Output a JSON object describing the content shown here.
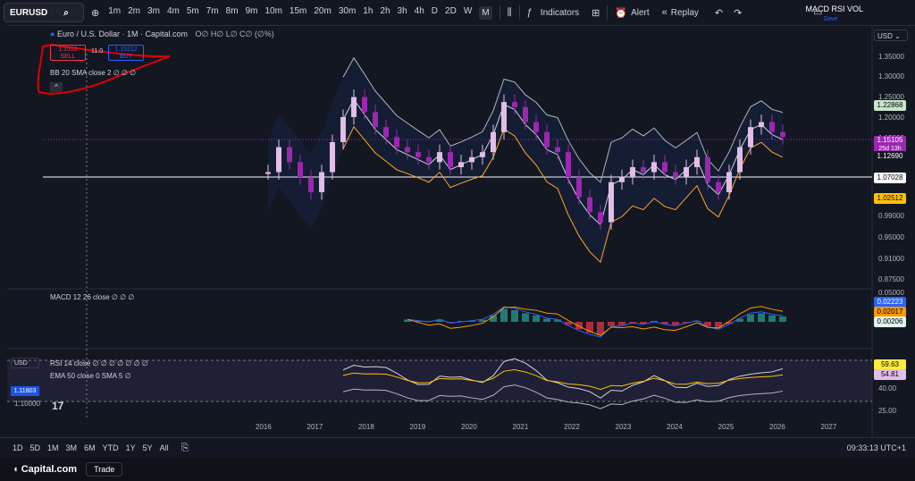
{
  "toolbar": {
    "symbol": "EURUSD",
    "intervals": [
      "1m",
      "2m",
      "3m",
      "4m",
      "5m",
      "7m",
      "8m",
      "9m",
      "10m",
      "15m",
      "20m",
      "30m",
      "1h",
      "2h",
      "3h",
      "4h",
      "D",
      "2D",
      "W",
      "M"
    ],
    "active_interval": "M",
    "indicators_label": "Indicators",
    "alert_label": "Alert",
    "replay_label": "Replay",
    "layout_name": "MACD RSI VOL",
    "save_label": "Save"
  },
  "legend": {
    "title": "Euro / U.S. Dollar · 1M · Capital.com",
    "ohlc": "O∅ H∅ L∅ C∅ (∅%)",
    "sell_price": "1.1510",
    "sell_label": "SELL",
    "spread": "11.0",
    "buy_price": "1.15212",
    "buy_label": "BUY",
    "bb_label": "BB 20 SMA close 2  ∅ ∅ ∅",
    "macd_label": "MACD 12 26 close  ∅ ∅ ∅",
    "rsi_label": "RSI 14 close  ∅ ∅ ∅ ∅ ∅ ∅ ∅",
    "ema_label": "EMA 50 close 0 SMA 5  ∅"
  },
  "price_axis": {
    "currency": "USD",
    "labels": [
      "1.35000",
      "1.30000",
      "1.25000",
      "1.20000",
      "1.15000",
      "1.10000",
      "1.05000",
      "1.00000",
      "0.99000",
      "0.95000",
      "0.91000",
      "0.87500"
    ],
    "tags": [
      {
        "value": "1.22868",
        "bg": "#c8e6c9",
        "fg": "#000000"
      },
      {
        "value": "1.15105",
        "bg": "#9c27b0",
        "fg": "#ffffff",
        "sub": "25d 13h"
      },
      {
        "value": "1.12690",
        "bg": "#131722",
        "fg": "#ffffff"
      },
      {
        "value": "1.07028",
        "bg": "#ffffff",
        "fg": "#000000"
      },
      {
        "value": "1.02512",
        "bg": "#ffc107",
        "fg": "#000000"
      }
    ],
    "macd_labels": [
      "0.05000"
    ],
    "macd_tags": [
      {
        "value": "0.02223",
        "bg": "#2962ff",
        "fg": "#ffffff"
      },
      {
        "value": "0.02017",
        "bg": "#ff9800",
        "fg": "#000000"
      },
      {
        "value": "0.00206",
        "bg": "#e0f2f1",
        "fg": "#000000"
      }
    ],
    "rsi_labels": [
      "40.00",
      "25.00"
    ],
    "rsi_tags": [
      {
        "value": "59.63",
        "bg": "#ffeb3b",
        "fg": "#000000"
      },
      {
        "value": "54.81",
        "bg": "#e1bee7",
        "fg": "#000000"
      }
    ]
  },
  "left_panel": {
    "currency": "USD",
    "tag": "1.11803",
    "price": "1.10000"
  },
  "years": [
    "2016",
    "2017",
    "2018",
    "2019",
    "2020",
    "2021",
    "2022",
    "2023",
    "2024",
    "2025",
    "2026",
    "2027"
  ],
  "bottom": {
    "ranges": [
      "1D",
      "5D",
      "1M",
      "3M",
      "6M",
      "YTD",
      "1Y",
      "5Y",
      "All"
    ],
    "time": "09:33:13 UTC+1"
  },
  "footer": {
    "brand": "Capital.com",
    "trade_label": "Trade"
  },
  "colors": {
    "background": "#131722",
    "up_candle": "#e1bee7",
    "down_candle": "#9c27b0",
    "bb_upper": "#b2b5be",
    "bb_lower": "#ffa726",
    "macd": "#2962ff",
    "signal": "#ff9800",
    "annotation": "#e00000"
  },
  "chart_data": {
    "type": "line",
    "series": [
      {
        "name": "Close",
        "values": [
          1.08,
          1.13,
          1.1,
          1.07,
          1.04,
          1.08,
          1.14,
          1.19,
          1.23,
          1.2,
          1.17,
          1.15,
          1.13,
          1.12,
          1.11,
          1.1,
          1.12,
          1.09,
          1.1,
          1.11,
          1.12,
          1.16,
          1.22,
          1.21,
          1.18,
          1.16,
          1.13,
          1.12,
          1.07,
          1.03,
          1.0,
          0.98,
          1.06,
          1.07,
          1.09,
          1.08,
          1.1,
          1.08,
          1.07,
          1.09,
          1.11,
          1.06,
          1.04,
          1.08,
          1.13,
          1.17,
          1.18,
          1.16,
          1.15
        ]
      }
    ]
  }
}
